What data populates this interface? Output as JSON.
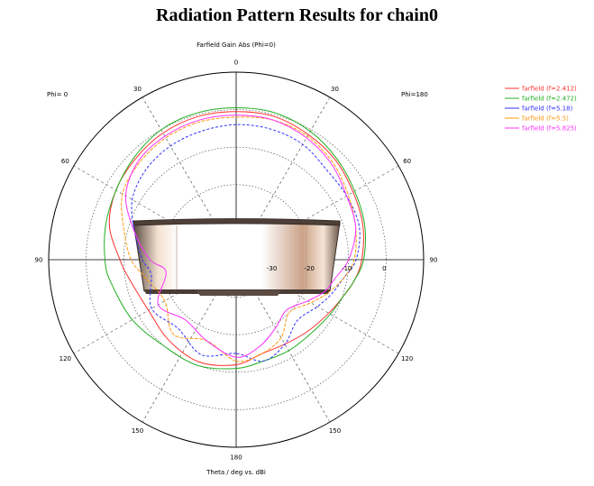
{
  "page": {
    "title": "Radiation Pattern Results for chain0"
  },
  "chart_data": {
    "type": "polar",
    "title": "Farfield Gain Abs (Phi=0)",
    "xlabel": "Theta / deg vs. dBi",
    "phi_left_label": "Phi=  0",
    "phi_right_label": "Phi=180",
    "angle_ticks": [
      {
        "deg": 0,
        "label": "0"
      },
      {
        "deg": 30,
        "label": "30"
      },
      {
        "deg": 60,
        "label": "60"
      },
      {
        "deg": 90,
        "label": "90"
      },
      {
        "deg": 120,
        "label": "120"
      },
      {
        "deg": 150,
        "label": "150"
      },
      {
        "deg": 180,
        "label": "180"
      },
      {
        "deg": -30,
        "label": "30"
      },
      {
        "deg": -60,
        "label": "60"
      },
      {
        "deg": -90,
        "label": "90"
      },
      {
        "deg": -120,
        "label": "120"
      },
      {
        "deg": -150,
        "label": "150"
      }
    ],
    "radial_range": [
      -40,
      10
    ],
    "radial_ticks": [
      -30,
      -20,
      -10,
      0
    ],
    "grid": true,
    "legend_position": "top-right",
    "series": [
      {
        "name": "farfield (f=2.412)",
        "color": "#ff3030",
        "theta": [
          -180,
          -160,
          -140,
          -120,
          -100,
          -90,
          -75,
          -60,
          -45,
          -30,
          -15,
          0,
          15,
          30,
          45,
          60,
          75,
          90,
          100,
          110,
          120,
          135,
          150,
          165,
          180
        ],
        "gain": [
          -12,
          -11,
          -12,
          -13,
          -11,
          -9,
          -5,
          -3,
          -2,
          -1,
          -0.5,
          -0.5,
          -0.5,
          -1.5,
          -2.5,
          -4,
          -5,
          -6.5,
          -8,
          -10,
          -11.5,
          -13,
          -14,
          -14,
          -12
        ]
      },
      {
        "name": "farfield (f=2.472)",
        "color": "#20b020",
        "theta": [
          -180,
          -160,
          -140,
          -120,
          -100,
          -90,
          -75,
          -60,
          -45,
          -30,
          -15,
          0,
          15,
          30,
          45,
          60,
          75,
          90,
          100,
          110,
          120,
          135,
          150,
          165,
          180
        ],
        "gain": [
          -11,
          -10,
          -10,
          -8,
          -6,
          -5,
          -4,
          -3,
          -1.5,
          0,
          0.5,
          0.5,
          0.5,
          -0.5,
          -2,
          -3.5,
          -4.5,
          -6,
          -8,
          -10,
          -11,
          -12,
          -12,
          -12,
          -11
        ]
      },
      {
        "name": "farfield (f=5.18)",
        "color": "#3030ff",
        "theta": [
          -180,
          -160,
          -140,
          -120,
          -100,
          -90,
          -75,
          -60,
          -45,
          -30,
          -15,
          0,
          15,
          30,
          45,
          60,
          75,
          90,
          100,
          110,
          120,
          135,
          150,
          165,
          180
        ],
        "gain": [
          -15,
          -13,
          -16,
          -14,
          -17,
          -15,
          -12,
          -8,
          -6,
          -5,
          -4.5,
          -4,
          -4,
          -4.5,
          -6,
          -6,
          -6,
          -8,
          -11,
          -13,
          -15,
          -17,
          -14,
          -12,
          -15
        ]
      },
      {
        "name": "farfield (f=5.5)",
        "color": "#ff9a10",
        "theta": [
          -180,
          -160,
          -140,
          -120,
          -100,
          -90,
          -75,
          -60,
          -45,
          -30,
          -15,
          0,
          15,
          30,
          45,
          60,
          75,
          90,
          100,
          110,
          120,
          135,
          150,
          165,
          180
        ],
        "gain": [
          -13,
          -17,
          -14,
          -18,
          -15,
          -12,
          -9,
          -5,
          -3.5,
          -2.5,
          -2,
          -2,
          -1.5,
          -2,
          -3.5,
          -5.5,
          -7,
          -8.5,
          -11,
          -14,
          -17,
          -20,
          -16,
          -14,
          -13
        ]
      },
      {
        "name": "farfield (f=5.825)",
        "color": "#ff30ff",
        "theta": [
          -180,
          -160,
          -140,
          -120,
          -100,
          -90,
          -75,
          -60,
          -45,
          -30,
          -15,
          0,
          15,
          30,
          45,
          60,
          75,
          90,
          100,
          110,
          120,
          135,
          150,
          165,
          180
        ],
        "gain": [
          -14,
          -17,
          -19,
          -16,
          -21,
          -17,
          -12,
          -6,
          -3,
          -2,
          -1.5,
          -1.5,
          -1.5,
          -2.5,
          -4,
          -6,
          -7,
          -10,
          -13,
          -15,
          -18,
          -21,
          -19,
          -16,
          -14
        ]
      }
    ]
  }
}
